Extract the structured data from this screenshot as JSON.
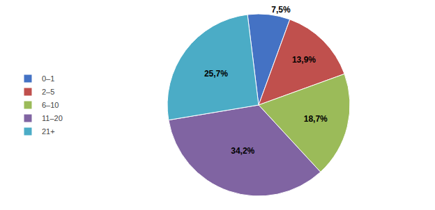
{
  "chart_data": {
    "type": "pie",
    "categories": [
      "0–1",
      "2–5",
      "6–10",
      "11–20",
      "21+"
    ],
    "values": [
      7.5,
      13.9,
      18.7,
      34.2,
      25.7
    ],
    "value_labels": [
      "7,5%",
      "13,9%",
      "18,7%",
      "34,2%",
      "25,7%"
    ],
    "colors": [
      "#4472C4",
      "#C0504D",
      "#9BBB59",
      "#8064A2",
      "#4BACC6"
    ],
    "data_labels": true,
    "legend": "left"
  }
}
